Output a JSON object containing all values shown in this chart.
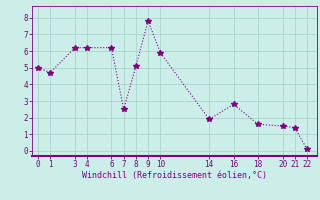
{
  "x": [
    0,
    1,
    3,
    4,
    6,
    7,
    8,
    9,
    10,
    14,
    16,
    18,
    20,
    21,
    22
  ],
  "y": [
    5.0,
    4.7,
    6.2,
    6.2,
    6.2,
    2.5,
    5.1,
    7.8,
    5.9,
    1.9,
    2.8,
    1.6,
    1.5,
    1.4,
    0.1
  ],
  "xticks": [
    0,
    1,
    3,
    4,
    6,
    7,
    8,
    9,
    10,
    14,
    16,
    18,
    20,
    21,
    22
  ],
  "yticks": [
    0,
    1,
    2,
    3,
    4,
    5,
    6,
    7,
    8
  ],
  "ylim": [
    -0.3,
    8.7
  ],
  "xlim": [
    -0.5,
    22.8
  ],
  "xlabel": "Windchill (Refroidissement éolien,°C)",
  "line_color": "#800080",
  "marker": "*",
  "markersize": 4,
  "linewidth": 0.8,
  "bg_color": "#cceee8",
  "grid_color": "#aad4cc",
  "tick_color": "#800080",
  "label_color": "#800080",
  "spine_color": "#800080",
  "fontsize_tick": 5.5,
  "fontsize_label": 6.0
}
